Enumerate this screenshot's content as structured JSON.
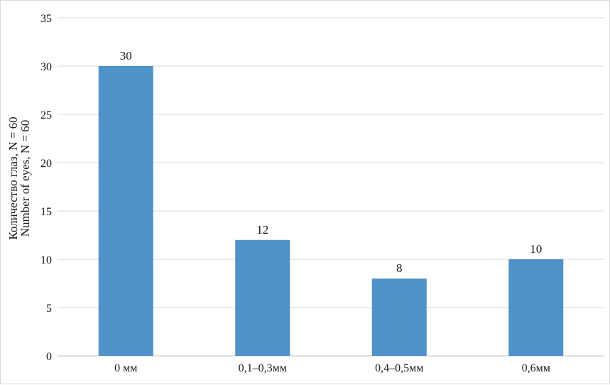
{
  "chart_data": {
    "type": "bar",
    "categories": [
      "0 мм",
      "0,1–0,3мм",
      "0,4–0,5мм",
      "0,6мм"
    ],
    "values": [
      30,
      12,
      8,
      10
    ],
    "data_labels": [
      "30",
      "12",
      "8",
      "10"
    ],
    "title": "",
    "xlabel": "",
    "ylabel_lines": [
      "Количество глаз, N = 60",
      "Number of eyes, N = 60"
    ],
    "ylim": [
      0,
      35
    ],
    "yticks": [
      0,
      5,
      10,
      15,
      20,
      25,
      30,
      35
    ],
    "grid": true,
    "legend": "none",
    "colors": {
      "bar": "#4f92c9",
      "grid": "#d9d9d9",
      "axis": "#bfbfbf"
    }
  }
}
